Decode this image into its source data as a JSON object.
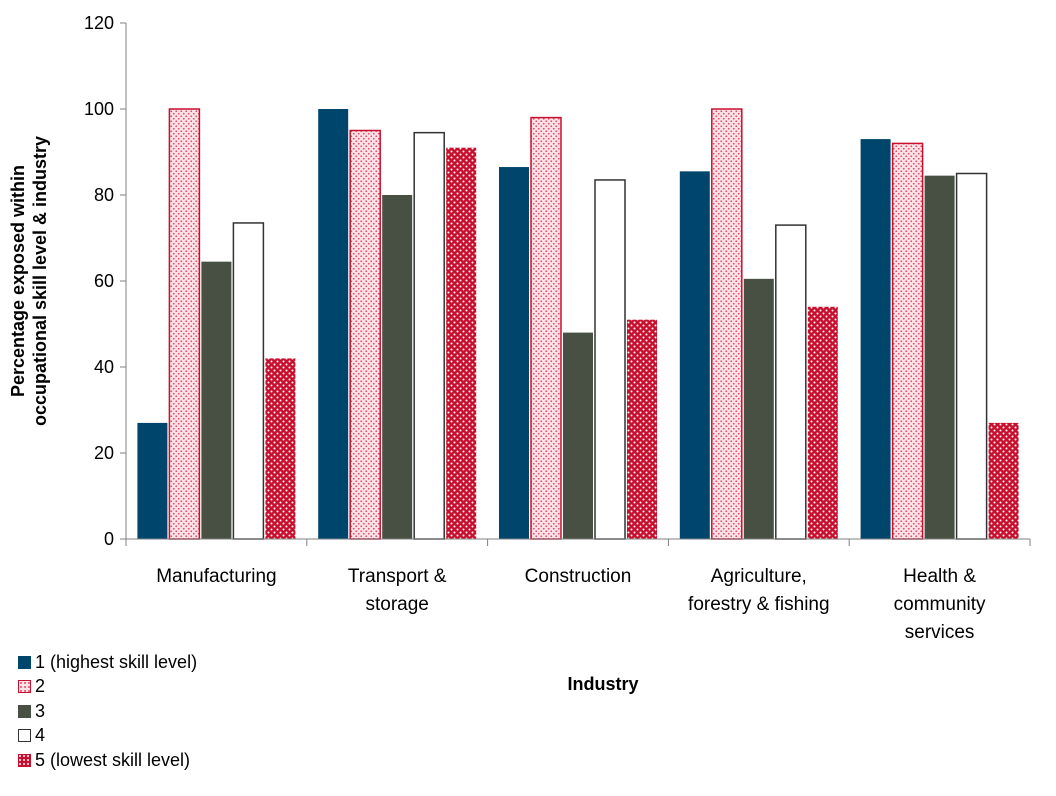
{
  "chart_data": {
    "type": "bar",
    "categories": [
      [
        "Manufacturing"
      ],
      [
        "Transport &",
        "storage"
      ],
      [
        "Construction"
      ],
      [
        "Agriculture,",
        "forestry & fishing"
      ],
      [
        "Health &",
        "community",
        "services"
      ]
    ],
    "series": [
      {
        "name": "1 (highest skill level)",
        "values": [
          27,
          100,
          86.5,
          85.5,
          93
        ],
        "fill": "#00456b",
        "pattern": "solid"
      },
      {
        "name": "2",
        "values": [
          100,
          95,
          98,
          100,
          92
        ],
        "fill": "#fbd5dc",
        "stroke": "#c8102e",
        "pattern": "dots-light"
      },
      {
        "name": "3",
        "values": [
          64.5,
          80,
          48,
          60.5,
          84.5
        ],
        "fill": "#475042",
        "pattern": "solid"
      },
      {
        "name": "4",
        "values": [
          73.5,
          94.5,
          83.5,
          73,
          85
        ],
        "fill": "#ffffff",
        "stroke": "#333333",
        "pattern": "solid"
      },
      {
        "name": "5 (lowest skill level)",
        "values": [
          42,
          91,
          51,
          54,
          27
        ],
        "fill": "#c8102e",
        "pattern": "dots-white"
      }
    ],
    "xlabel": "Industry",
    "ylabel": [
      "Percentage exposed within",
      "occupational skill level & industry"
    ],
    "yticks": [
      0,
      20,
      40,
      60,
      80,
      100,
      120
    ],
    "ylim": [
      0,
      120
    ],
    "grid": false,
    "legend_position": "bottom-left"
  }
}
